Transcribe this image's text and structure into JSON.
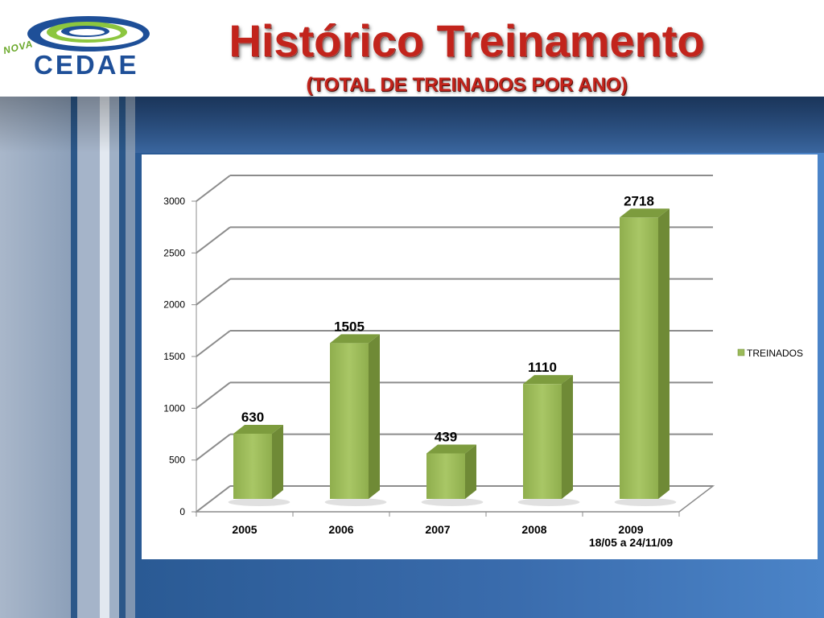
{
  "header": {
    "logo_word": "CEDAE",
    "logo_prefix": "NOVA",
    "title": "Histórico Treinamento",
    "subtitle": "(TOTAL DE TREINADOS POR ANO)"
  },
  "colors": {
    "title_red": "#c2241c",
    "bar_front": "#9bbb59",
    "bar_side": "#6f8a36",
    "bar_top": "#7d9c3e",
    "logo_blue": "#1e4f98",
    "logo_green": "#6aa829"
  },
  "chart_data": {
    "type": "bar",
    "categories": [
      "2005",
      "2006",
      "2007",
      "2008",
      "2009"
    ],
    "category_sublabels": [
      "",
      "",
      "",
      "",
      "18/05 a 24/11/09"
    ],
    "series": [
      {
        "name": "TREINADOS",
        "values": [
          630,
          1505,
          439,
          1110,
          2718
        ]
      }
    ],
    "data_labels": [
      "630",
      "1505",
      "439",
      "1110",
      "2718"
    ],
    "yticks": [
      "0",
      "500",
      "1000",
      "1500",
      "2000",
      "2500",
      "3000"
    ],
    "ylim": [
      0,
      3000
    ],
    "grid": true,
    "three_d": true,
    "legend_position": "right"
  }
}
